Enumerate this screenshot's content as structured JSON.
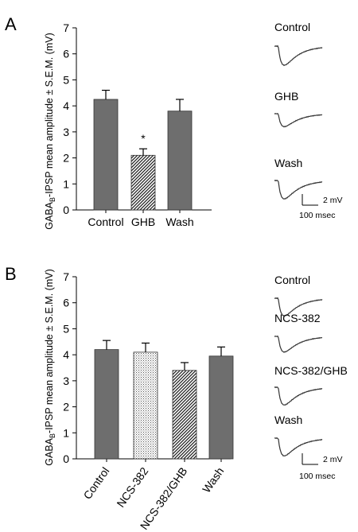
{
  "chart_data": [
    {
      "panel": "A",
      "type": "bar",
      "ylabel_parts": [
        "GABA",
        "B",
        "-IPSP mean amplitude ± S.E.M. (mV)"
      ],
      "ylim": [
        0,
        7
      ],
      "yticks": [
        "0",
        "1",
        "2",
        "3",
        "4",
        "5",
        "6",
        "7"
      ],
      "categories": [
        "Control",
        "GHB",
        "Wash"
      ],
      "values": [
        4.25,
        2.1,
        3.8
      ],
      "errors": [
        0.35,
        0.25,
        0.45
      ],
      "fills": [
        "gray",
        "hatch",
        "gray"
      ],
      "annotations": [
        {
          "category": "GHB",
          "text": "*"
        }
      ],
      "traces": [
        "Control",
        "GHB",
        "Wash"
      ],
      "scale_bar": {
        "amplitude": "2 mV",
        "time": "100 msec"
      }
    },
    {
      "panel": "B",
      "type": "bar",
      "ylabel_parts": [
        "GABA",
        "B",
        "-IPSP mean amplitude ± S.E.M. (mV)"
      ],
      "ylim": [
        0,
        7
      ],
      "yticks": [
        "0",
        "1",
        "2",
        "3",
        "4",
        "5",
        "6",
        "7"
      ],
      "categories": [
        "Control",
        "NCS-382",
        "NCS-382/GHB",
        "Wash"
      ],
      "values": [
        4.2,
        4.1,
        3.4,
        3.95
      ],
      "errors": [
        0.35,
        0.35,
        0.3,
        0.35
      ],
      "fills": [
        "gray",
        "dots",
        "hatch",
        "gray"
      ],
      "annotations": [],
      "traces": [
        "Control",
        "NCS-382",
        "NCS-382/GHB",
        "Wash"
      ],
      "scale_bar": {
        "amplitude": "2 mV",
        "time": "100 msec"
      }
    }
  ],
  "colors": {
    "bar_gray": "#6e6e6e",
    "axis": "#000000",
    "trace": "#333333"
  }
}
